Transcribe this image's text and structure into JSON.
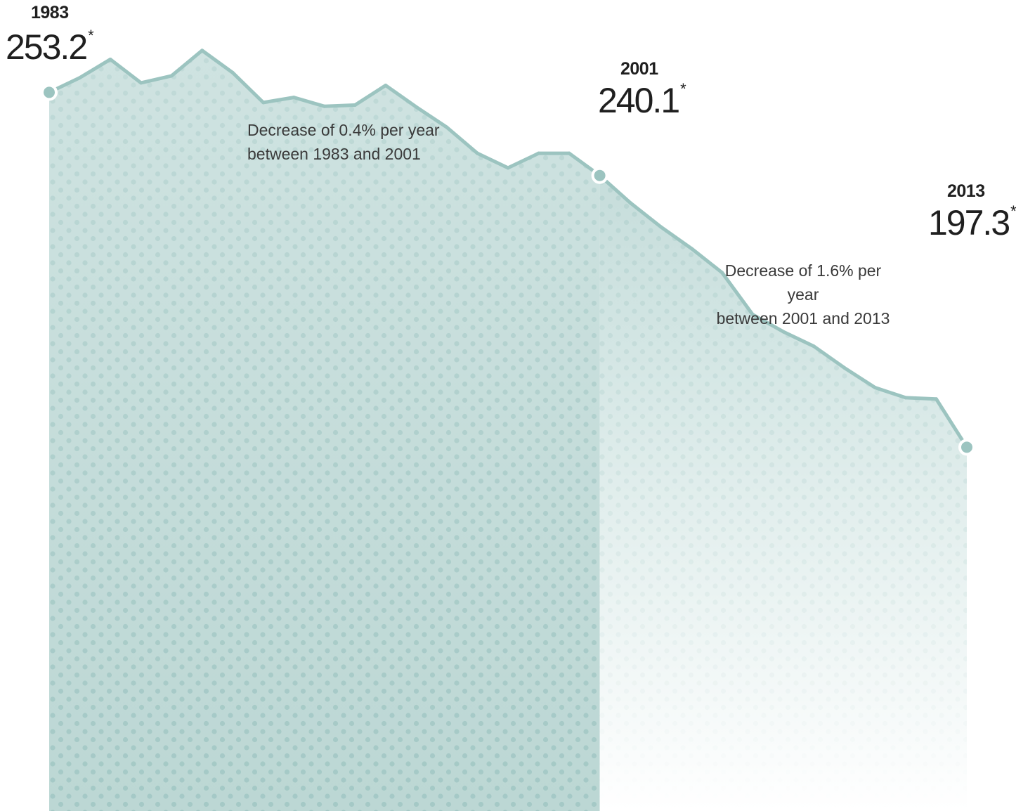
{
  "chart_data": {
    "type": "area",
    "x": [
      1983,
      1984,
      1985,
      1986,
      1987,
      1988,
      1989,
      1990,
      1991,
      1992,
      1993,
      1994,
      1995,
      1996,
      1997,
      1998,
      1999,
      2000,
      2001,
      2002,
      2003,
      2004,
      2005,
      2006,
      2007,
      2008,
      2009,
      2010,
      2011,
      2012,
      2013
    ],
    "y": [
      253.2,
      255.5,
      258.4,
      254.7,
      255.8,
      259.8,
      256.3,
      251.6,
      252.4,
      251.0,
      251.2,
      254.3,
      250.9,
      247.7,
      243.6,
      241.3,
      243.6,
      243.6,
      240.1,
      235.8,
      232.0,
      228.6,
      224.8,
      218.2,
      215.5,
      213.2,
      209.8,
      206.7,
      205.1,
      204.9,
      197.3
    ],
    "ylim": [
      140,
      260
    ],
    "highlights": [
      {
        "year": "1983",
        "value": "253.2",
        "mark": "*"
      },
      {
        "year": "2001",
        "value": "240.1",
        "mark": "*"
      },
      {
        "year": "2013",
        "value": "197.3",
        "mark": "*"
      }
    ],
    "annotations": [
      {
        "lines": [
          "Decrease of 0.4% per year",
          "between 1983 and 2001"
        ]
      },
      {
        "lines": [
          "Decrease of 1.6% per year",
          "between 2001 and 2013"
        ]
      }
    ],
    "colors": {
      "line": "#9cc4c0",
      "fill": "#c7dfdd",
      "dots": "#9cc1be",
      "marker": "#9cc4c0"
    }
  }
}
